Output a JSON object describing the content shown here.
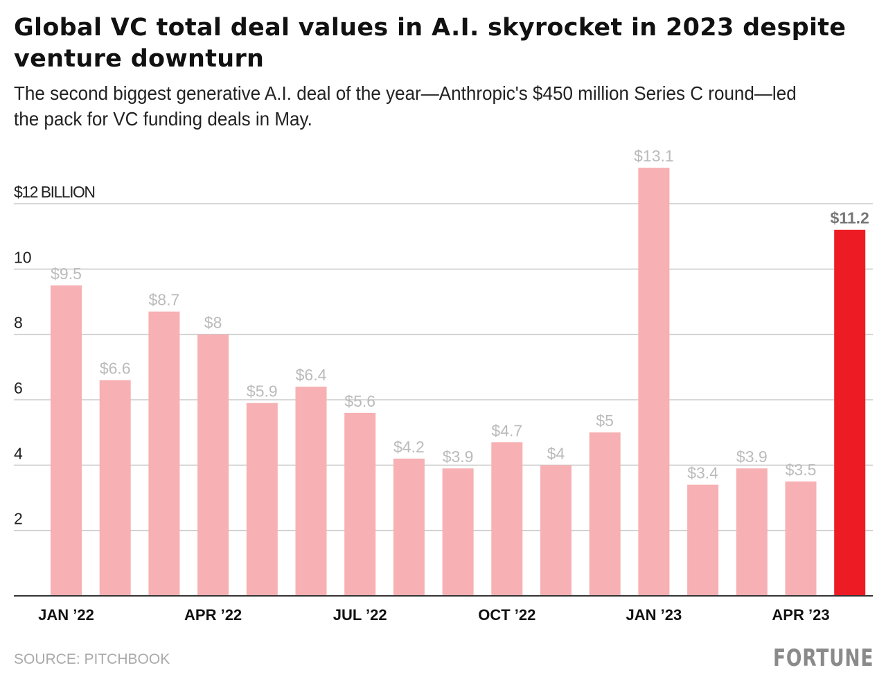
{
  "chart_data": {
    "type": "bar",
    "title": "Global VC total deal values in A.I. skyrocket in 2023 despite venture downturn",
    "subtitle": "The second biggest generative A.I. deal of the year—Anthropic's $450 million Series C round—led the pack for VC funding deals in May.",
    "categories": [
      "JAN ’22",
      "",
      "",
      "APR ’22",
      "",
      "",
      "JUL ’22",
      "",
      "",
      "OCT ’22",
      "",
      "",
      "JAN ’23",
      "",
      "",
      "APR ’23",
      ""
    ],
    "values": [
      9.5,
      6.6,
      8.7,
      8,
      5.9,
      6.4,
      5.6,
      4.2,
      3.9,
      4.7,
      4,
      5,
      13.1,
      3.4,
      3.9,
      3.5,
      11.2
    ],
    "data_labels": [
      "$9.5",
      "$6.6",
      "$8.7",
      "$8",
      "$5.9",
      "$6.4",
      "$5.6",
      "$4.2",
      "$3.9",
      "$4.7",
      "$4",
      "$5",
      "$13.1",
      "$3.4",
      "$3.9",
      "$3.5",
      "$11.2"
    ],
    "highlight_index": 16,
    "y_ticks": [
      {
        "value": 2,
        "label": "2"
      },
      {
        "value": 4,
        "label": "4"
      },
      {
        "value": 6,
        "label": "6"
      },
      {
        "value": 8,
        "label": "8"
      },
      {
        "value": 10,
        "label": "10"
      },
      {
        "value": 12,
        "label": "$12 BILLION"
      }
    ],
    "ylim": [
      0,
      12
    ],
    "grid": true,
    "xlabel": "",
    "ylabel": "",
    "colors": {
      "bar": "#f7b0b3",
      "highlight": "#ed1c24",
      "label": "#bbbbbb",
      "highlight_label": "#777777",
      "grid": "#cccccc"
    }
  },
  "footer": {
    "source": "SOURCE: PITCHBOOK",
    "logo": "FORTUNE"
  }
}
